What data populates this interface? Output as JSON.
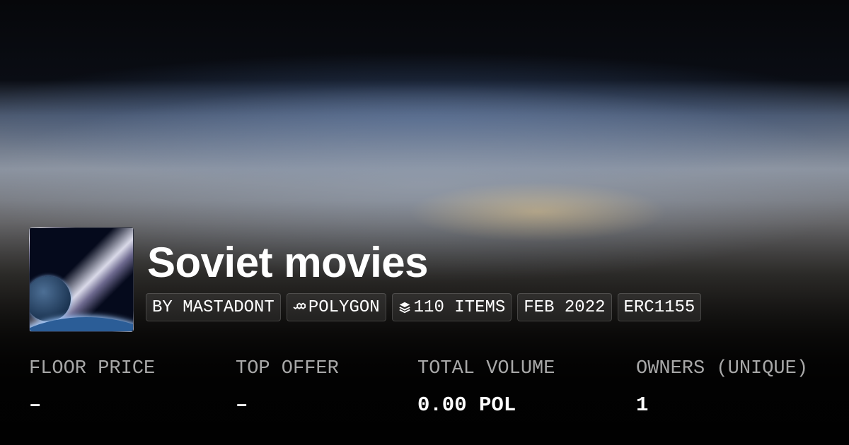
{
  "collection": {
    "name": "Soviet movies",
    "badges": [
      {
        "label": "BY MASTADONT",
        "icon": ""
      },
      {
        "label": "POLYGON",
        "icon": "polygon-chain-icon"
      },
      {
        "label": "110 ITEMS",
        "icon": "layers-icon"
      },
      {
        "label": "FEB 2022",
        "icon": ""
      },
      {
        "label": "ERC1155",
        "icon": ""
      }
    ]
  },
  "stats": [
    {
      "label": "FLOOR PRICE",
      "value": "–"
    },
    {
      "label": "TOP OFFER",
      "value": "–"
    },
    {
      "label": "TOTAL VOLUME",
      "value": "0.00 POL"
    },
    {
      "label": "OWNERS (UNIQUE)",
      "value": "1"
    }
  ]
}
